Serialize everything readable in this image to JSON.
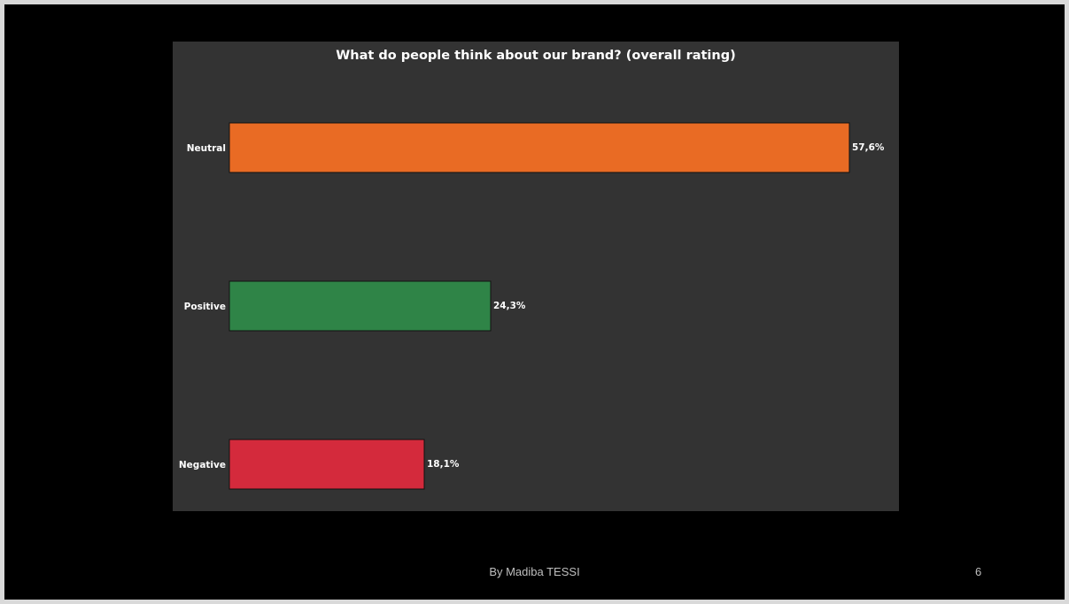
{
  "footer": {
    "author": "By Madiba TESSI",
    "slide_number": "6"
  },
  "colors": {
    "slide_bg": "#000000",
    "panel_bg": "#333333",
    "text": "#ffffff"
  },
  "chart_data": {
    "type": "bar",
    "orientation": "horizontal",
    "title": "What do people think about our brand? (overall rating)",
    "xlabel": "",
    "ylabel": "",
    "categories": [
      "Neutral",
      "Positive",
      "Negative"
    ],
    "values": [
      57.6,
      24.3,
      18.1
    ],
    "value_labels": [
      "57,6%",
      "24,3%",
      "18,1%"
    ],
    "colors": [
      "#e96b24",
      "#2f8447",
      "#d42a3c"
    ],
    "xlim": [
      0,
      57.6
    ],
    "grid": false,
    "legend": "none"
  }
}
